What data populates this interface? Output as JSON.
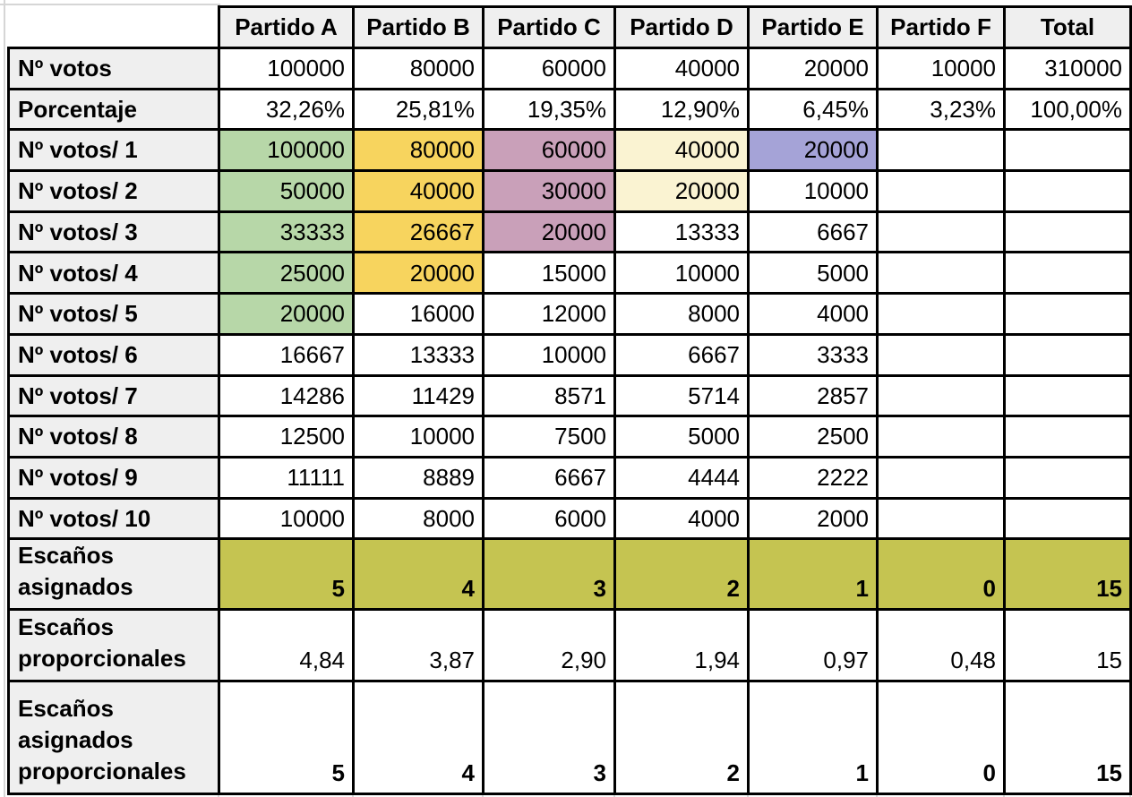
{
  "colors": {
    "header_bg": "#efefef",
    "label_bg": "#efefef",
    "border": "#000000",
    "gridline": "#d6d6d6",
    "green": "#b7d7a8",
    "yellow": "#f7d45e",
    "mauve": "#c9a0b9",
    "cream": "#faf3d2",
    "purple": "#a5a3d7",
    "olive": "#c5c451"
  },
  "chart_data": {
    "type": "table",
    "corner_label": "",
    "columns": [
      "Partido A",
      "Partido B",
      "Partido C",
      "Partido D",
      "Partido E",
      "Partido F",
      "Total"
    ],
    "rows": [
      {
        "label": "Nº votos",
        "size": "std",
        "cells": [
          "100000",
          "80000",
          "60000",
          "40000",
          "20000",
          "10000",
          "310000"
        ]
      },
      {
        "label": "Porcentaje",
        "size": "std",
        "cells": [
          "32,26%",
          "25,81%",
          "19,35%",
          "12,90%",
          "6,45%",
          "3,23%",
          "100,00%"
        ]
      },
      {
        "label": "Nº votos/ 1",
        "size": "std",
        "cells": [
          "100000",
          "80000",
          "60000",
          "40000",
          "20000",
          "",
          ""
        ],
        "highlights": {
          "0": "green",
          "1": "yellow",
          "2": "mauve",
          "3": "cream",
          "4": "purple"
        }
      },
      {
        "label": "Nº votos/ 2",
        "size": "std",
        "cells": [
          "50000",
          "40000",
          "30000",
          "20000",
          "10000",
          "",
          ""
        ],
        "highlights": {
          "0": "green",
          "1": "yellow",
          "2": "mauve",
          "3": "cream"
        }
      },
      {
        "label": "Nº votos/ 3",
        "size": "std",
        "cells": [
          "33333",
          "26667",
          "20000",
          "13333",
          "6667",
          "",
          ""
        ],
        "highlights": {
          "0": "green",
          "1": "yellow",
          "2": "mauve"
        }
      },
      {
        "label": "Nº votos/ 4",
        "size": "std",
        "cells": [
          "25000",
          "20000",
          "15000",
          "10000",
          "5000",
          "",
          ""
        ],
        "highlights": {
          "0": "green",
          "1": "yellow"
        }
      },
      {
        "label": "Nº votos/ 5",
        "size": "std",
        "cells": [
          "20000",
          "16000",
          "12000",
          "8000",
          "4000",
          "",
          ""
        ],
        "highlights": {
          "0": "green"
        }
      },
      {
        "label": "Nº votos/ 6",
        "size": "std",
        "cells": [
          "16667",
          "13333",
          "10000",
          "6667",
          "3333",
          "",
          ""
        ]
      },
      {
        "label": "Nº votos/ 7",
        "size": "std",
        "cells": [
          "14286",
          "11429",
          "8571",
          "5714",
          "2857",
          "",
          ""
        ]
      },
      {
        "label": "Nº votos/ 8",
        "size": "std",
        "cells": [
          "12500",
          "10000",
          "7500",
          "5000",
          "2500",
          "",
          ""
        ]
      },
      {
        "label": "Nº votos/ 9",
        "size": "std",
        "cells": [
          "11111",
          "8889",
          "6667",
          "4444",
          "2222",
          "",
          ""
        ]
      },
      {
        "label": "Nº votos/ 10",
        "size": "std",
        "cells": [
          "10000",
          "8000",
          "6000",
          "4000",
          "2000",
          "",
          ""
        ]
      },
      {
        "label": "Escaños asignados",
        "size": "seats",
        "bold": true,
        "row_highlight": "olive",
        "cells": [
          "5",
          "4",
          "3",
          "2",
          "1",
          "0",
          "15"
        ]
      },
      {
        "label": "Escaños proporcionales",
        "size": "tall2",
        "bold": false,
        "cells": [
          "4,84",
          "3,87",
          "2,90",
          "1,94",
          "0,97",
          "0,48",
          "15"
        ]
      },
      {
        "label": "Escaños asignados proporcionales",
        "size": "tall3",
        "bold": true,
        "cells": [
          "5",
          "4",
          "3",
          "2",
          "1",
          "0",
          "15"
        ]
      }
    ]
  }
}
